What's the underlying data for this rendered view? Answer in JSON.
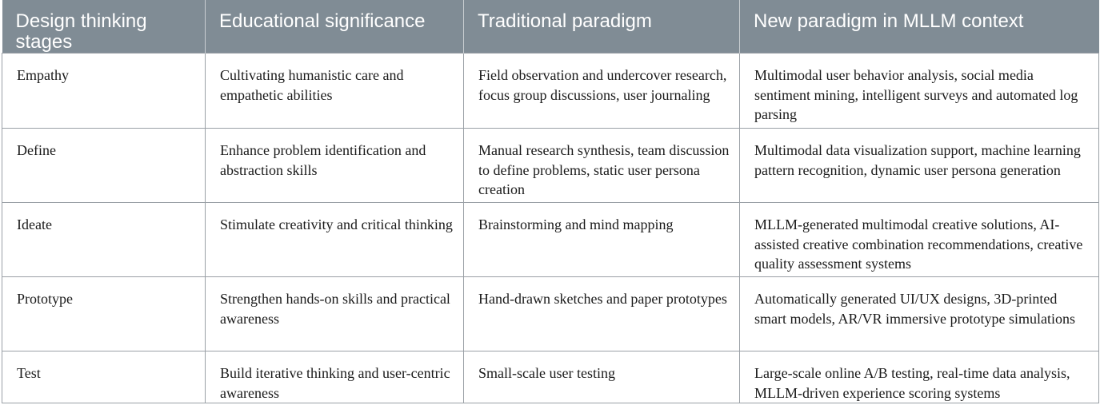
{
  "table": {
    "headers": [
      "Design thinking stages",
      "Educational significance",
      "Traditional paradigm",
      "New paradigm in MLLM context"
    ],
    "rows": [
      [
        "Empathy",
        "Cultivating humanistic care and empathetic abilities",
        "Field observation and undercover research, focus group discussions, user journaling",
        "Multimodal user behavior analysis, social media sentiment mining, intelligent surveys and automated log parsing"
      ],
      [
        "Define",
        "Enhance problem identification and abstraction skills",
        "Manual research synthesis, team discussion to define problems, static user persona creation",
        "Multimodal data visualization support, machine learning pattern recognition, dynamic user persona generation"
      ],
      [
        "Ideate",
        "Stimulate creativity and critical thinking",
        "Brainstorming and mind mapping",
        "MLLM-generated multimodal creative solutions, AI-assisted creative combination recommendations, creative quality assessment systems"
      ],
      [
        "Prototype",
        "Strengthen hands-on skills and practical awareness",
        "Hand-drawn sketches and paper prototypes",
        "Automatically generated UI/UX designs, 3D-printed smart models, AR/VR immersive prototype simulations"
      ],
      [
        "Test",
        "Build iterative thinking and user-centric awareness",
        "Small-scale user testing",
        "Large-scale online A/B testing, real-time data analysis, MLLM-driven experience scoring systems"
      ]
    ]
  }
}
